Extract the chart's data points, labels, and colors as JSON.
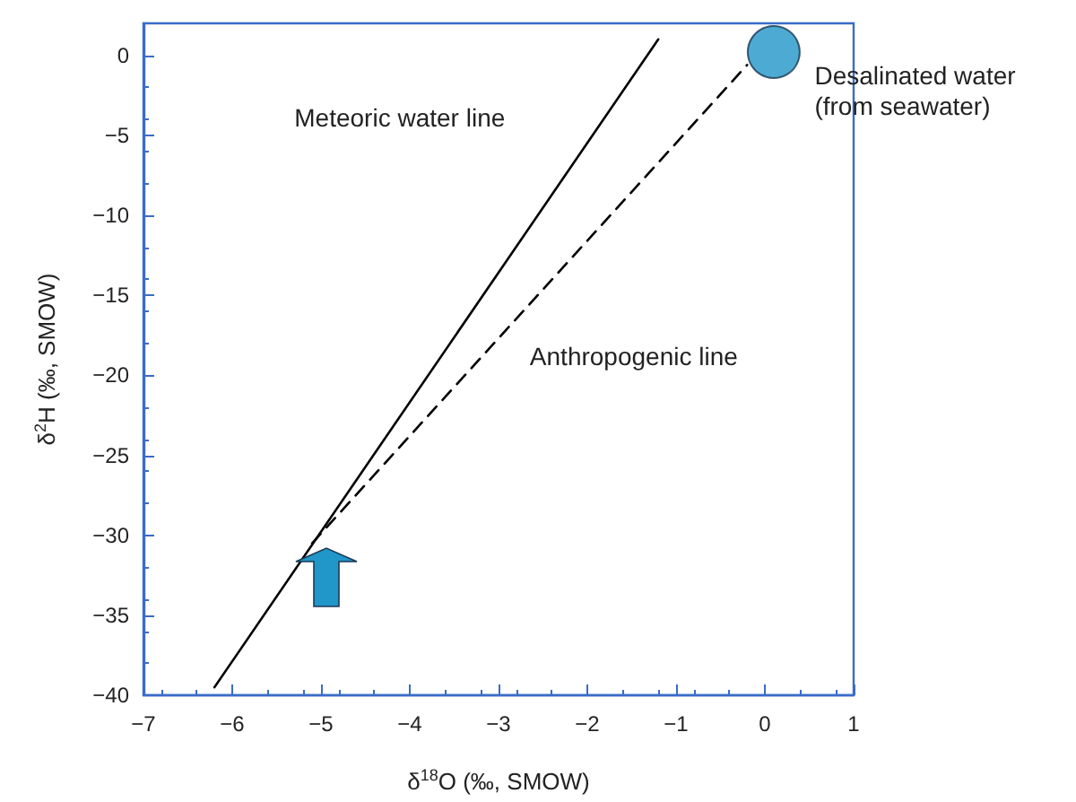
{
  "chart_data": {
    "type": "line",
    "xlabel": "δ$^{18}$O (‰, SMOW)",
    "ylabel": "δ$^{2}$H (‰, SMOW)",
    "xlim": [
      -7,
      1
    ],
    "xticks": [
      -7,
      -6,
      -5,
      -4,
      -3,
      -2,
      -1,
      0,
      1
    ],
    "ylim": [
      -40,
      2
    ],
    "yticks": [
      -40,
      -35,
      -30,
      -25,
      -20,
      -15,
      -10,
      -5,
      0
    ],
    "series": [
      {
        "color": "#000000",
        "x": [
          -6.2,
          -1.2
        ],
        "values": [
          -39.5,
          1
        ],
        "line_style": "solid",
        "marker": "none"
      },
      {
        "color": "#000000",
        "x": [
          -5.1,
          -0.2
        ],
        "values": [
          -30.5,
          -0.6
        ],
        "line_style": "dashed",
        "marker": "none"
      },
      {
        "type": "scatter",
        "color": "#2196c8",
        "x": [
          0.1
        ],
        "values": [
          0.2
        ],
        "marker": "circle"
      }
    ],
    "annotations": [
      "Meteoric water line",
      "Anthropogenic line",
      "Desalinated water\n(from seawater)"
    ]
  }
}
